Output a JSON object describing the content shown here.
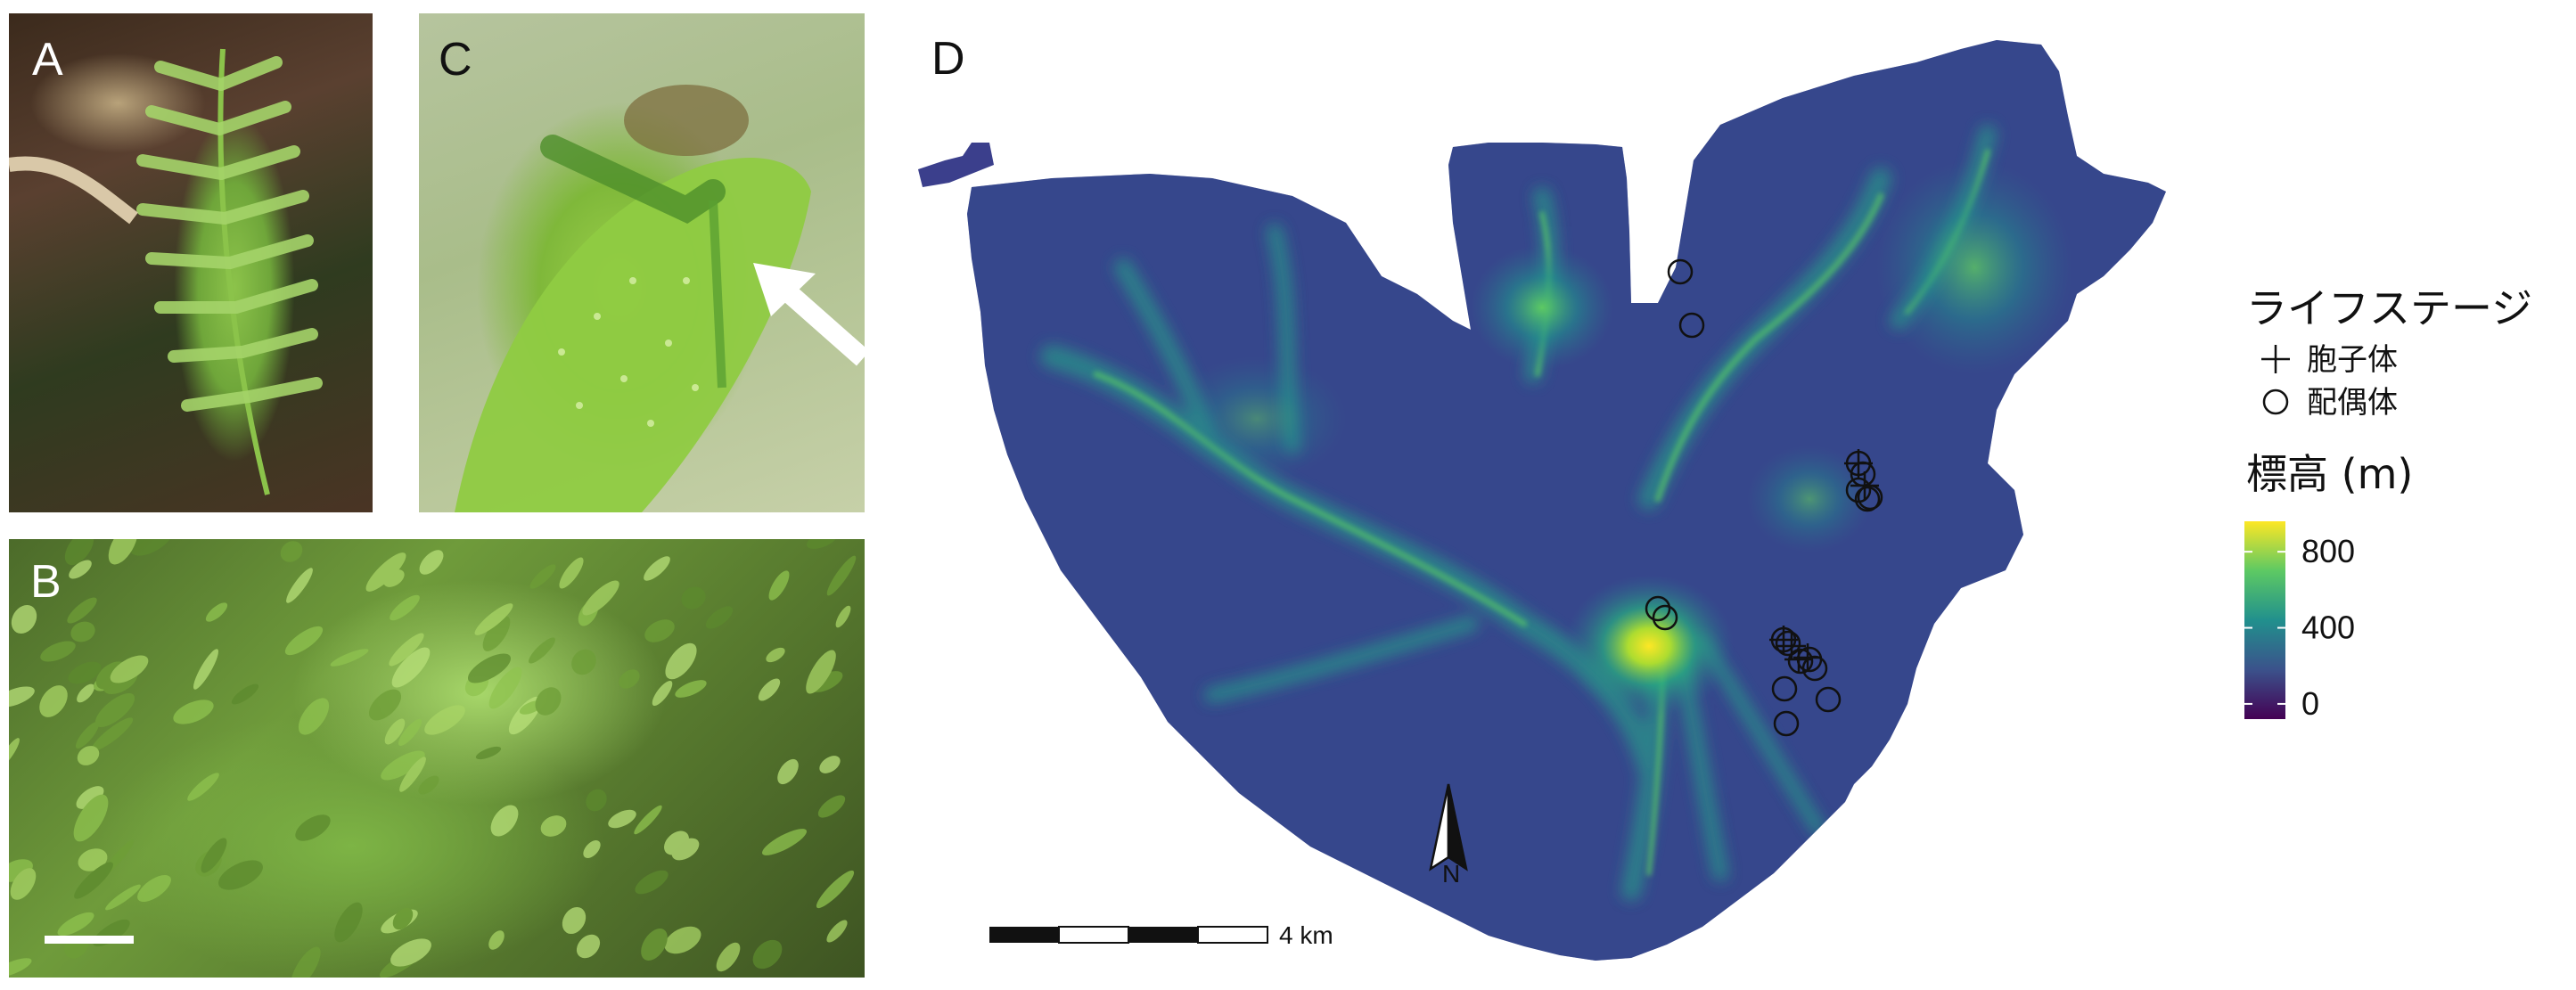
{
  "panels": {
    "a": {
      "letter": "A"
    },
    "b": {
      "letter": "B"
    },
    "c": {
      "letter": "C"
    },
    "d": {
      "letter": "D"
    }
  },
  "map": {
    "north_label": "N",
    "scale_label": "4 km",
    "colors": {
      "outside": "#ffffff",
      "low": "#440154",
      "mid": "#21908d",
      "high": "#fde725"
    }
  },
  "legend": {
    "life_stage_title": "ライフステージ",
    "sporophyte": "胞子体",
    "gametophyte": "配偶体",
    "elevation_title": "標高 (m)",
    "colorbar_ticks": [
      {
        "value": 0,
        "label": "0"
      },
      {
        "value": 400,
        "label": "400"
      },
      {
        "value": 800,
        "label": "800"
      }
    ],
    "colorbar_range": [
      -80,
      960
    ]
  },
  "chart_data": {
    "type": "map",
    "legend_placement": "right",
    "symbols": {
      "sporophyte": "+",
      "gametophyte": "○"
    },
    "observations_note_scale": "4 km",
    "colorbar": {
      "min": -80,
      "max": 960,
      "ticks": [
        0,
        400,
        800
      ]
    }
  }
}
